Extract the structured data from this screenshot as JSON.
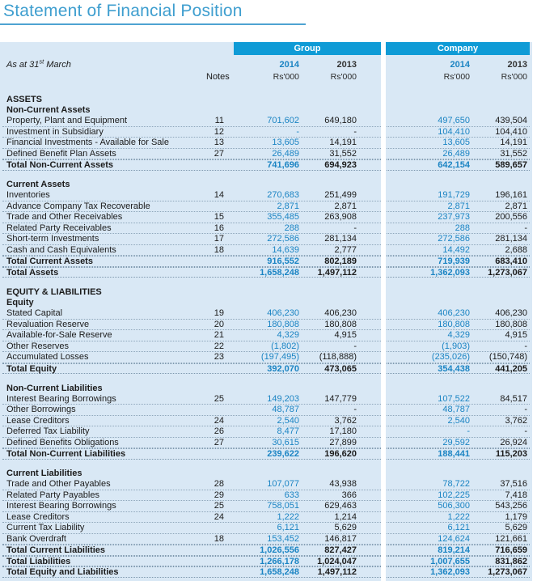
{
  "title": "Statement of Financial Position",
  "colors": {
    "title_blue": "#3e9ecf",
    "header_box_blue": "#0f9bd6",
    "value_2014_blue": "#1b84c3",
    "table_background": "#d9e8f5",
    "body_text": "#1b1b1b"
  },
  "header": {
    "as_at_prefix": "As at 31",
    "as_at_sup": "st",
    "as_at_suffix": " March",
    "notes_label": "Notes",
    "group_label": "Group",
    "company_label": "Company",
    "unit": "Rs'000",
    "years": {
      "group": [
        "2014",
        "2013"
      ],
      "company": [
        "2014",
        "2013"
      ]
    }
  },
  "rows": [
    {
      "type": "section",
      "label": "ASSETS"
    },
    {
      "type": "subsection",
      "label": "Non-Current Assets"
    },
    {
      "type": "item",
      "label": "Property, Plant and Equipment",
      "note": "11",
      "values": [
        "701,602",
        "649,180",
        "497,650",
        "439,504"
      ]
    },
    {
      "type": "item",
      "label": "Investment in Subsidiary",
      "note": "12",
      "values": [
        "-",
        "-",
        "104,410",
        "104,410"
      ]
    },
    {
      "type": "item",
      "label": "Financial Investments - Available for Sale",
      "note": "13",
      "values": [
        "13,605",
        "14,191",
        "13,605",
        "14,191"
      ]
    },
    {
      "type": "item",
      "label": "Defined Benefit Plan Assets",
      "note": "27",
      "values": [
        "26,489",
        "31,552",
        "26,489",
        "31,552"
      ]
    },
    {
      "type": "total",
      "label": "Total Non-Current Assets",
      "note": "",
      "values": [
        "741,696",
        "694,923",
        "642,154",
        "589,657"
      ]
    },
    {
      "type": "spacer"
    },
    {
      "type": "subsection",
      "label": "Current Assets"
    },
    {
      "type": "item",
      "label": "Inventories",
      "note": "14",
      "values": [
        "270,683",
        "251,499",
        "191,729",
        "196,161"
      ]
    },
    {
      "type": "item",
      "label": "Advance Company Tax Recoverable",
      "note": "",
      "values": [
        "2,871",
        "2,871",
        "2,871",
        "2,871"
      ]
    },
    {
      "type": "item",
      "label": "Trade and Other Receivables",
      "note": "15",
      "values": [
        "355,485",
        "263,908",
        "237,973",
        "200,556"
      ]
    },
    {
      "type": "item",
      "label": "Related Party Receivables",
      "note": "16",
      "values": [
        "288",
        "-",
        "288",
        "-"
      ]
    },
    {
      "type": "item",
      "label": "Short-term Investments",
      "note": "17",
      "values": [
        "272,586",
        "281,134",
        "272,586",
        "281,134"
      ]
    },
    {
      "type": "item",
      "label": "Cash and Cash Equivalents",
      "note": "18",
      "values": [
        "14,639",
        "2,777",
        "14,492",
        "2,688"
      ]
    },
    {
      "type": "total",
      "label": "Total Current Assets",
      "note": "",
      "values": [
        "916,552",
        "802,189",
        "719,939",
        "683,410"
      ]
    },
    {
      "type": "total",
      "label": "Total Assets",
      "note": "",
      "values": [
        "1,658,248",
        "1,497,112",
        "1,362,093",
        "1,273,067"
      ]
    },
    {
      "type": "spacer"
    },
    {
      "type": "section",
      "label": "EQUITY & LIABILITIES"
    },
    {
      "type": "subsection",
      "label": "Equity"
    },
    {
      "type": "item",
      "label": "Stated Capital",
      "note": "19",
      "values": [
        "406,230",
        "406,230",
        "406,230",
        "406,230"
      ]
    },
    {
      "type": "item",
      "label": "Revaluation Reserve",
      "note": "20",
      "values": [
        "180,808",
        "180,808",
        "180,808",
        "180,808"
      ]
    },
    {
      "type": "item",
      "label": "Available-for-Sale Reserve",
      "note": "21",
      "values": [
        "4,329",
        "4,915",
        "4,329",
        "4,915"
      ]
    },
    {
      "type": "item",
      "label": "Other Reserves",
      "note": "22",
      "values": [
        "(1,802)",
        "-",
        "(1,903)",
        "-"
      ]
    },
    {
      "type": "item",
      "label": "Accumulated Losses",
      "note": "23",
      "values": [
        "(197,495)",
        "(118,888)",
        "(235,026)",
        "(150,748)"
      ]
    },
    {
      "type": "total",
      "label": "Total Equity",
      "note": "",
      "values": [
        "392,070",
        "473,065",
        "354,438",
        "441,205"
      ]
    },
    {
      "type": "spacer"
    },
    {
      "type": "subsection",
      "label": "Non-Current Liabilities"
    },
    {
      "type": "item",
      "label": "Interest Bearing Borrowings",
      "note": "25",
      "values": [
        "149,203",
        "147,779",
        "107,522",
        "84,517"
      ]
    },
    {
      "type": "item",
      "label": "Other Borrowings",
      "note": "",
      "values": [
        "48,787",
        "-",
        "48,787",
        "-"
      ]
    },
    {
      "type": "item",
      "label": "Lease Creditors",
      "note": "24",
      "values": [
        "2,540",
        "3,762",
        "2,540",
        "3,762"
      ]
    },
    {
      "type": "item",
      "label": "Deferred Tax Liability",
      "note": "26",
      "values": [
        "8,477",
        "17,180",
        "-",
        "-"
      ]
    },
    {
      "type": "item",
      "label": "Defined Benefits Obligations",
      "note": "27",
      "values": [
        "30,615",
        "27,899",
        "29,592",
        "26,924"
      ]
    },
    {
      "type": "total",
      "label": "Total Non-Current Liabilities",
      "note": "",
      "values": [
        "239,622",
        "196,620",
        "188,441",
        "115,203"
      ]
    },
    {
      "type": "spacer"
    },
    {
      "type": "subsection",
      "label": "Current Liabilities"
    },
    {
      "type": "item",
      "label": "Trade and Other Payables",
      "note": "28",
      "values": [
        "107,077",
        "43,938",
        "78,722",
        "37,516"
      ]
    },
    {
      "type": "item",
      "label": "Related Party Payables",
      "note": "29",
      "values": [
        "633",
        "366",
        "102,225",
        "7,418"
      ]
    },
    {
      "type": "item",
      "label": "Interest Bearing Borrowings",
      "note": "25",
      "values": [
        "758,051",
        "629,463",
        "506,300",
        "543,256"
      ]
    },
    {
      "type": "item",
      "label": "Lease Creditors",
      "note": "24",
      "values": [
        "1,222",
        "1,214",
        "1,222",
        "1,179"
      ]
    },
    {
      "type": "item",
      "label": "Current Tax Liability",
      "note": "",
      "values": [
        "6,121",
        "5,629",
        "6,121",
        "5,629"
      ]
    },
    {
      "type": "item",
      "label": "Bank Overdraft",
      "note": "18",
      "values": [
        "153,452",
        "146,817",
        "124,624",
        "121,661"
      ]
    },
    {
      "type": "total",
      "label": "Total Current Liabilities",
      "note": "",
      "values": [
        "1,026,556",
        "827,427",
        "819,214",
        "716,659"
      ]
    },
    {
      "type": "total",
      "label": "Total Liabilities",
      "note": "",
      "values": [
        "1,266,178",
        "1,024,047",
        "1,007,655",
        "831,862"
      ]
    },
    {
      "type": "total",
      "label": "Total Equity and Liabilities",
      "note": "",
      "values": [
        "1,658,248",
        "1,497,112",
        "1,362,093",
        "1,273,067"
      ]
    }
  ]
}
